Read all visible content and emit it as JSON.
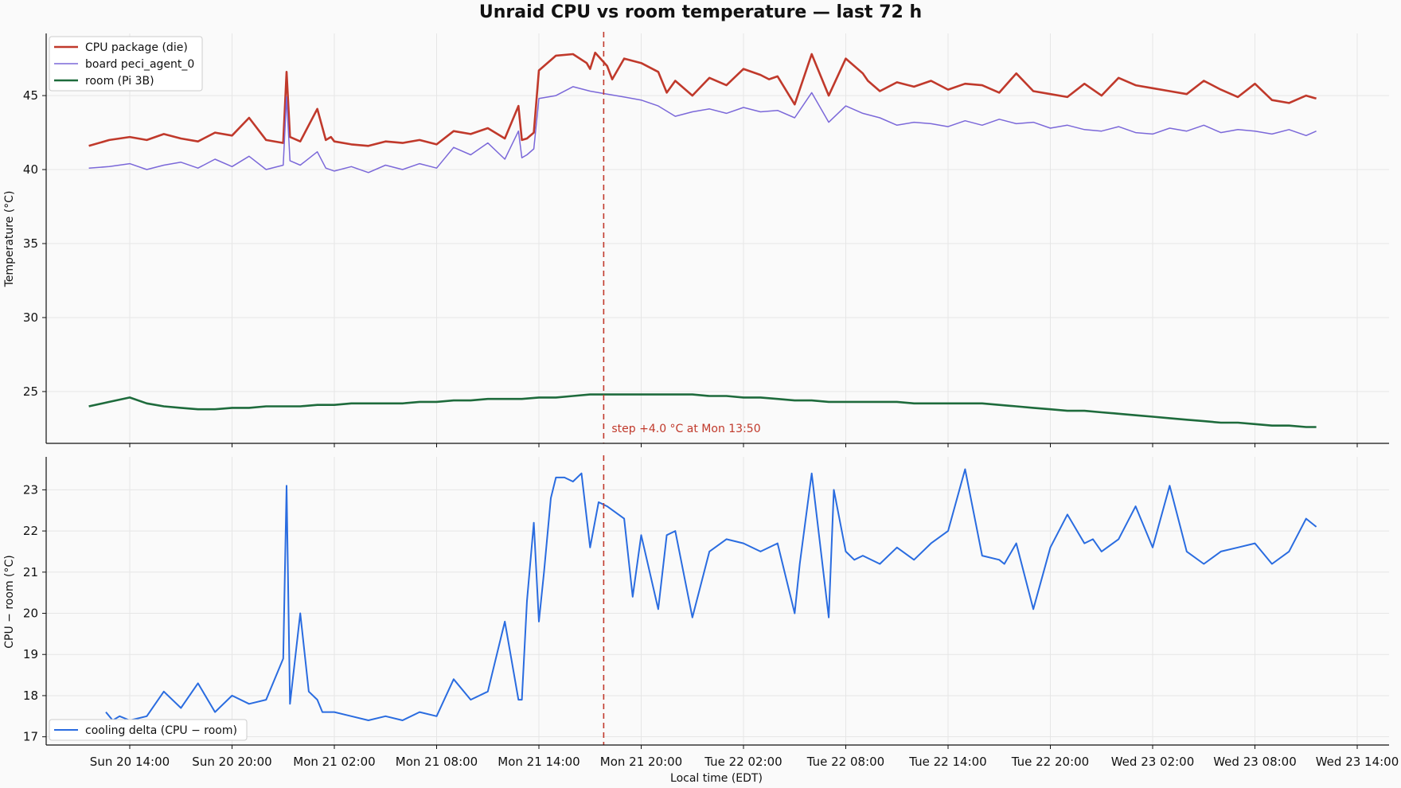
{
  "title": "Unraid CPU vs room temperature — last 72 h",
  "colors": {
    "cpu": "#c0392b",
    "board": "#7b68d9",
    "room": "#1e6b3c",
    "delta": "#2a6ce0",
    "step": "#c0392b"
  },
  "chart_data": [
    {
      "type": "line",
      "panel": "top",
      "ylabel": "Temperature (°C)",
      "ylim": [
        21.5,
        49.2
      ],
      "yticks": [
        "25",
        "30",
        "35",
        "40",
        "45"
      ],
      "grid": true,
      "legend_position": "top-left",
      "x_unit": "hours from Sun 20 14:00",
      "series": [
        {
          "name": "CPU package (die)",
          "x": [
            -2.4,
            -1.2,
            0,
            1,
            2,
            3,
            4,
            5,
            6,
            7,
            8,
            9,
            9.2,
            9.4,
            10,
            11,
            11.5,
            11.8,
            12,
            13,
            14,
            15,
            16,
            17,
            18,
            19,
            20,
            21,
            22,
            22.8,
            23,
            23.3,
            23.7,
            24,
            25,
            26,
            26.8,
            27,
            27.3,
            28,
            28.3,
            29,
            30,
            31,
            31.5,
            32,
            33,
            34,
            35,
            36,
            37,
            37.5,
            38,
            39,
            40,
            41,
            42,
            43,
            43.3,
            44,
            45,
            46,
            47,
            48,
            49,
            50,
            51,
            52,
            53,
            54,
            55,
            56,
            57,
            58,
            59,
            60,
            61,
            62,
            63,
            64,
            65,
            66,
            67,
            68,
            69,
            69.6
          ],
          "values": [
            41.6,
            42.0,
            42.2,
            42.0,
            42.4,
            42.1,
            41.9,
            42.5,
            42.3,
            43.5,
            42.0,
            41.8,
            46.6,
            42.2,
            41.9,
            44.1,
            42.0,
            42.2,
            41.9,
            41.7,
            41.6,
            41.9,
            41.8,
            42.0,
            41.7,
            42.6,
            42.4,
            42.8,
            42.1,
            44.3,
            42.0,
            42.1,
            42.5,
            46.7,
            47.7,
            47.8,
            47.2,
            46.8,
            47.9,
            47.0,
            46.1,
            47.5,
            47.2,
            46.6,
            45.2,
            46.0,
            45.0,
            46.2,
            45.7,
            46.8,
            46.4,
            46.1,
            46.3,
            44.4,
            47.8,
            45.0,
            47.5,
            46.5,
            46.0,
            45.3,
            45.9,
            45.6,
            46.0,
            45.4,
            45.8,
            45.7,
            45.2,
            46.5,
            45.3,
            45.1,
            44.9,
            45.8,
            45.0,
            46.2,
            45.7,
            45.5,
            45.3,
            45.1,
            46.0,
            45.4,
            44.9,
            45.8,
            44.7,
            44.5,
            45.0,
            44.8
          ]
        },
        {
          "name": "board peci_agent_0",
          "x": [
            -2.4,
            -1.2,
            0,
            1,
            2,
            3,
            4,
            5,
            6,
            7,
            8,
            9,
            9.2,
            9.4,
            10,
            11,
            11.5,
            12,
            13,
            14,
            15,
            16,
            17,
            18,
            19,
            20,
            21,
            22,
            22.8,
            23,
            23.3,
            23.7,
            24,
            25,
            26,
            27,
            28,
            29,
            30,
            31,
            32,
            33,
            34,
            35,
            36,
            37,
            38,
            39,
            40,
            41,
            42,
            43,
            44,
            45,
            46,
            47,
            48,
            49,
            50,
            51,
            52,
            53,
            54,
            55,
            56,
            57,
            58,
            59,
            60,
            61,
            62,
            63,
            64,
            65,
            66,
            67,
            68,
            69,
            69.6
          ],
          "values": [
            40.1,
            40.2,
            40.4,
            40.0,
            40.3,
            40.5,
            40.1,
            40.7,
            40.2,
            40.9,
            40.0,
            40.3,
            44.9,
            40.6,
            40.3,
            41.2,
            40.1,
            39.9,
            40.2,
            39.8,
            40.3,
            40.0,
            40.4,
            40.1,
            41.5,
            41.0,
            41.8,
            40.7,
            42.6,
            40.8,
            41.0,
            41.4,
            44.8,
            45.0,
            45.6,
            45.3,
            45.1,
            44.9,
            44.7,
            44.3,
            43.6,
            43.9,
            44.1,
            43.8,
            44.2,
            43.9,
            44.0,
            43.5,
            45.2,
            43.2,
            44.3,
            43.8,
            43.5,
            43.0,
            43.2,
            43.1,
            42.9,
            43.3,
            43.0,
            43.4,
            43.1,
            43.2,
            42.8,
            43.0,
            42.7,
            42.6,
            42.9,
            42.5,
            42.4,
            42.8,
            42.6,
            43.0,
            42.5,
            42.7,
            42.6,
            42.4,
            42.7,
            42.3,
            42.6
          ]
        },
        {
          "name": "room (Pi 3B)",
          "x": [
            -2.4,
            -1.2,
            0,
            1,
            2,
            3,
            4,
            5,
            6,
            7,
            8,
            9,
            10,
            11,
            12,
            13,
            14,
            15,
            16,
            17,
            18,
            19,
            20,
            21,
            22,
            23,
            24,
            25,
            26,
            27,
            28,
            29,
            30,
            31,
            32,
            33,
            34,
            35,
            36,
            37,
            38,
            39,
            40,
            41,
            42,
            43,
            44,
            45,
            46,
            47,
            48,
            49,
            50,
            51,
            52,
            53,
            54,
            55,
            56,
            57,
            58,
            59,
            60,
            61,
            62,
            63,
            64,
            65,
            66,
            67,
            68,
            69,
            69.6
          ],
          "values": [
            24.0,
            24.3,
            24.6,
            24.2,
            24.0,
            23.9,
            23.8,
            23.8,
            23.9,
            23.9,
            24.0,
            24.0,
            24.0,
            24.1,
            24.1,
            24.2,
            24.2,
            24.2,
            24.2,
            24.3,
            24.3,
            24.4,
            24.4,
            24.5,
            24.5,
            24.5,
            24.6,
            24.6,
            24.7,
            24.8,
            24.8,
            24.8,
            24.8,
            24.8,
            24.8,
            24.8,
            24.7,
            24.7,
            24.6,
            24.6,
            24.5,
            24.4,
            24.4,
            24.3,
            24.3,
            24.3,
            24.3,
            24.3,
            24.2,
            24.2,
            24.2,
            24.2,
            24.2,
            24.1,
            24.0,
            23.9,
            23.8,
            23.7,
            23.7,
            23.6,
            23.5,
            23.4,
            23.3,
            23.2,
            23.1,
            23.0,
            22.9,
            22.9,
            22.8,
            22.7,
            22.7,
            22.6,
            22.6
          ]
        }
      ],
      "annotation": {
        "text": "step +4.0 °C at Mon 13:50",
        "x": 27.8
      }
    },
    {
      "type": "line",
      "panel": "bottom",
      "ylabel": "CPU − room (°C)",
      "xlabel": "Local time (EDT)",
      "ylim": [
        16.8,
        23.8
      ],
      "yticks": [
        "17",
        "18",
        "19",
        "20",
        "21",
        "22",
        "23"
      ],
      "grid": true,
      "legend_position": "bottom-left",
      "x_unit": "hours from Sun 20 14:00",
      "xticks": [
        "Sun 20 14:00",
        "Sun 20 20:00",
        "Mon 21 02:00",
        "Mon 21 08:00",
        "Mon 21 14:00",
        "Mon 21 20:00",
        "Tue 22 02:00",
        "Tue 22 08:00",
        "Tue 22 14:00",
        "Tue 22 20:00",
        "Wed 23 02:00",
        "Wed 23 08:00",
        "Wed 23 14:00"
      ],
      "series": [
        {
          "name": "cooling delta  (CPU − room)",
          "x": [
            -1.4,
            -1.0,
            -0.6,
            0,
            1,
            2,
            3,
            4,
            5,
            6,
            7,
            8,
            9,
            9.2,
            9.4,
            10,
            10.5,
            11,
            11.3,
            12,
            13,
            14,
            15,
            16,
            17,
            18,
            19,
            20,
            21,
            22,
            22.8,
            23,
            23.3,
            23.7,
            24,
            24.3,
            24.7,
            25,
            25.5,
            26,
            26.5,
            27,
            27.5,
            28,
            29,
            29.5,
            30,
            31,
            31.5,
            32,
            33,
            34,
            35,
            36,
            37,
            38,
            39,
            39.3,
            40,
            41,
            41.3,
            42,
            42.5,
            43,
            44,
            45,
            46,
            47,
            48,
            49,
            50,
            51,
            51.3,
            52,
            53,
            54,
            55,
            56,
            56.5,
            57,
            58,
            59,
            60,
            61,
            62,
            63,
            64,
            65,
            66,
            67,
            68,
            69,
            69.6
          ],
          "values": [
            17.6,
            17.4,
            17.5,
            17.4,
            17.5,
            18.1,
            17.7,
            18.3,
            17.6,
            18.0,
            17.8,
            17.9,
            18.9,
            23.1,
            17.8,
            20.0,
            18.1,
            17.9,
            17.6,
            17.6,
            17.5,
            17.4,
            17.5,
            17.4,
            17.6,
            17.5,
            18.4,
            17.9,
            18.1,
            19.8,
            17.9,
            17.9,
            20.3,
            22.2,
            19.8,
            21.0,
            22.8,
            23.3,
            23.3,
            23.2,
            23.4,
            21.6,
            22.7,
            22.6,
            22.3,
            20.4,
            21.9,
            20.1,
            21.9,
            22.0,
            19.9,
            21.5,
            21.8,
            21.7,
            21.5,
            21.7,
            20.0,
            21.2,
            23.4,
            19.9,
            23.0,
            21.5,
            21.3,
            21.4,
            21.2,
            21.6,
            21.3,
            21.7,
            22.0,
            23.5,
            21.4,
            21.3,
            21.2,
            21.7,
            20.1,
            21.6,
            22.4,
            21.7,
            21.8,
            21.5,
            21.8,
            22.6,
            21.6,
            23.1,
            21.5,
            21.2,
            21.5,
            21.6,
            21.7,
            21.2,
            21.5,
            22.3,
            22.1
          ]
        }
      ],
      "annotation": {
        "x": 27.8
      }
    }
  ]
}
